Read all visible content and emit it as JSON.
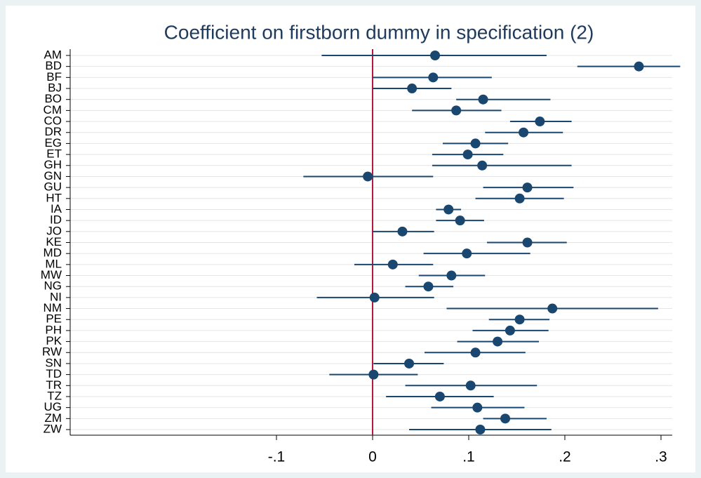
{
  "chart_data": {
    "type": "coefplot",
    "title": "Coefficient on firstborn dummy in specification (2)",
    "categories": [
      "AM",
      "BD",
      "BF",
      "BJ",
      "BO",
      "CM",
      "CO",
      "DR",
      "EG",
      "ET",
      "GH",
      "GN",
      "GU",
      "HT",
      "IA",
      "ID",
      "JO",
      "KE",
      "MD",
      "ML",
      "MW",
      "NG",
      "NI",
      "NM",
      "PE",
      "PH",
      "PK",
      "RW",
      "SN",
      "TD",
      "TR",
      "TZ",
      "UG",
      "ZM",
      "ZW"
    ],
    "values": [
      0.065,
      0.277,
      0.063,
      0.041,
      0.115,
      0.087,
      0.174,
      0.157,
      0.107,
      0.099,
      0.114,
      -0.005,
      0.161,
      0.153,
      0.079,
      0.091,
      0.031,
      0.161,
      0.098,
      0.021,
      0.082,
      0.058,
      0.002,
      0.187,
      0.153,
      0.143,
      0.13,
      0.107,
      0.038,
      0.001,
      0.102,
      0.07,
      0.109,
      0.138,
      0.112
    ],
    "lower": [
      -0.053,
      0.213,
      0.0,
      0.0,
      0.087,
      0.041,
      0.143,
      0.117,
      0.073,
      0.062,
      0.062,
      -0.072,
      0.115,
      0.107,
      0.066,
      0.066,
      0.0,
      0.119,
      0.053,
      -0.019,
      0.048,
      0.034,
      -0.058,
      0.077,
      0.121,
      0.104,
      0.088,
      0.054,
      0.001,
      -0.045,
      0.034,
      0.014,
      0.061,
      0.115,
      0.038
    ],
    "upper": [
      0.181,
      0.32,
      0.124,
      0.082,
      0.185,
      0.134,
      0.207,
      0.198,
      0.141,
      0.136,
      0.207,
      0.063,
      0.209,
      0.199,
      0.092,
      0.116,
      0.064,
      0.202,
      0.164,
      0.063,
      0.117,
      0.084,
      0.064,
      0.297,
      0.184,
      0.183,
      0.173,
      0.159,
      0.074,
      0.047,
      0.171,
      0.126,
      0.158,
      0.181,
      0.186
    ],
    "color": "#1a476f",
    "refline": 0,
    "refline_color": "#b01a38",
    "xlim": [
      -0.3146,
      0.3117
    ],
    "xticks": [
      {
        "value": -0.1,
        "label": "-.1"
      },
      0,
      {
        "value": 0.1,
        "label": ".1"
      },
      {
        "value": 0.2,
        "label": ".2"
      },
      {
        "value": 0.3,
        "label": ".3"
      }
    ],
    "grid": true
  }
}
